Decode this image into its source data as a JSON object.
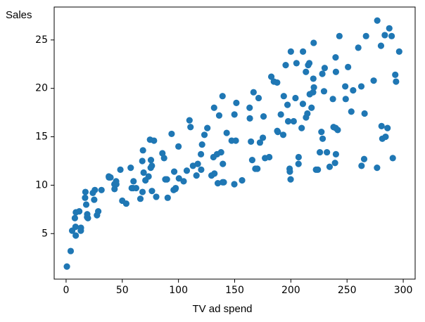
{
  "chart_data": {
    "type": "scatter",
    "xlabel": "TV ad spend",
    "ylabel": "Sales",
    "color": "#1f77b4",
    "xlim": [
      -10.6,
      310.6
    ],
    "ylim": [
      0.3,
      28.4
    ],
    "xticks": [
      0,
      50,
      100,
      150,
      200,
      250,
      300
    ],
    "yticks": [
      5,
      10,
      15,
      20,
      25
    ],
    "x": [
      0.7,
      4.1,
      5.4,
      7.8,
      8.4,
      8.6,
      8.7,
      11.7,
      13.1,
      13.2,
      16.9,
      17.2,
      17.9,
      18.7,
      19.4,
      18.8,
      23.8,
      25.0,
      25.6,
      27.5,
      28.6,
      31.5,
      38.0,
      38.2,
      39.5,
      43.0,
      43.1,
      44.5,
      44.7,
      48.3,
      50.0,
      53.5,
      57.5,
      58.4,
      59.6,
      62.3,
      66.1,
      67.8,
      68.4,
      69.0,
      70.6,
      73.4,
      74.7,
      75.3,
      75.5,
      76.3,
      76.4,
      78.2,
      80.2,
      85.7,
      87.2,
      88.3,
      89.7,
      90.4,
      93.9,
      95.7,
      96.2,
      97.2,
      97.5,
      100.4,
      104.6,
      107.4,
      109.8,
      110.7,
      112.9,
      116.0,
      117.2,
      120.2,
      121.0,
      123.1,
      125.7,
      129.4,
      131.1,
      131.7,
      134.3,
      136.2,
      137.9,
      139.2,
      139.3,
      139.5,
      140.3,
      142.9,
      147.3,
      149.7,
      149.8,
      151.5,
      156.6,
      163.3,
      163.5,
      164.5,
      165.6,
      166.8,
      168.4,
      170.2,
      171.3,
      172.5,
      175.1,
      175.7,
      177.0,
      180.8,
      182.6,
      184.9,
      187.8,
      187.9,
      188.4,
      191.1,
      193.2,
      193.7,
      195.4,
      197.6,
      198.9,
      199.1,
      199.8,
      200.0,
      202.5,
      204.1,
      205.0,
      206.8,
      206.9,
      209.6,
      210.7,
      210.8,
      213.4,
      213.5,
      214.7,
      215.4,
      216.4,
      216.8,
      218.4,
      219.8,
      220.3,
      220.5,
      222.4,
      224.0,
      225.8,
      227.2,
      228.0,
      228.3,
      229.5,
      230.1,
      232.1,
      234.5,
      237.4,
      239.3,
      239.8,
      239.9,
      240.1,
      240.1,
      241.7,
      243.2,
      248.4,
      248.8,
      250.9,
      253.8,
      255.4,
      262.7,
      262.9,
      265.2,
      265.6,
      266.9,
      273.7,
      276.7,
      276.9,
      280.2,
      280.7,
      281.4,
      283.6,
      284.3,
      286.0,
      287.6,
      289.7,
      290.7,
      292.9,
      293.6,
      296.4,
      238.0,
      220.0,
      260.0,
      60.0,
      197.0,
      68.0,
      100.0,
      120.0,
      132.0,
      151.0,
      135.0
    ],
    "values": [
      1.6,
      3.2,
      5.3,
      6.6,
      5.7,
      4.8,
      7.2,
      7.3,
      5.3,
      5.6,
      8.7,
      9.3,
      8.0,
      6.7,
      6.6,
      7.0,
      9.2,
      8.5,
      9.5,
      6.9,
      7.3,
      9.5,
      10.9,
      10.8,
      10.8,
      10.1,
      9.6,
      10.4,
      10.1,
      11.6,
      8.4,
      8.1,
      11.8,
      9.7,
      9.7,
      9.7,
      8.6,
      12.5,
      13.6,
      11.3,
      10.5,
      10.9,
      14.7,
      11.8,
      12.6,
      12.0,
      9.4,
      14.6,
      8.8,
      13.3,
      12.8,
      10.6,
      10.6,
      8.7,
      15.3,
      9.5,
      11.4,
      9.6,
      9.7,
      10.7,
      10.4,
      11.5,
      16.7,
      16.0,
      12.0,
      11.0,
      12.2,
      11.6,
      14.2,
      15.2,
      15.9,
      11.0,
      12.9,
      18.0,
      13.2,
      17.2,
      13.4,
      19.2,
      10.3,
      12.2,
      10.3,
      15.4,
      14.6,
      10.1,
      17.3,
      18.5,
      10.5,
      18.0,
      16.9,
      14.5,
      12.6,
      19.6,
      11.7,
      11.7,
      19.0,
      14.4,
      14.9,
      17.1,
      12.8,
      12.9,
      21.2,
      20.7,
      20.6,
      15.6,
      15.5,
      17.3,
      15.2,
      19.2,
      22.4,
      16.6,
      11.7,
      11.4,
      10.6,
      23.8,
      16.6,
      19.0,
      22.6,
      12.2,
      12.9,
      15.9,
      18.4,
      23.8,
      21.7,
      17.0,
      17.4,
      22.4,
      22.6,
      19.4,
      18.0,
      19.6,
      24.7,
      20.1,
      11.6,
      11.6,
      13.4,
      15.5,
      21.5,
      14.8,
      19.7,
      22.1,
      13.4,
      11.9,
      18.9,
      12.3,
      23.2,
      15.9,
      13.2,
      21.7,
      15.7,
      25.4,
      20.2,
      18.9,
      22.2,
      17.6,
      19.8,
      20.2,
      12.0,
      12.7,
      17.4,
      25.4,
      20.8,
      11.8,
      27.0,
      24.4,
      16.1,
      14.8,
      25.5,
      15.0,
      15.9,
      26.2,
      25.4,
      12.8,
      21.4,
      20.7,
      23.8,
      16.0,
      21.0,
      24.2,
      10.4,
      18.3,
      9.3,
      14.0,
      13.2,
      11.2,
      14.6,
      10.2
    ]
  }
}
